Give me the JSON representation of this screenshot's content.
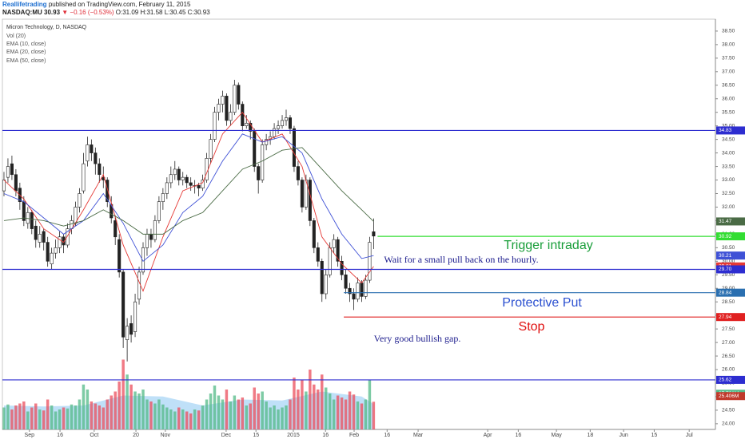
{
  "header": {
    "publisher": "Reallifetrading",
    "published": "published on TradingView.com, February 11, 2015",
    "symbol": "NASDAQ:MU 30.93",
    "change": "▼ −0.16 (−0.53%)",
    "ohlc": "O:31.09 H:31.58 L:30.45 C:30.93"
  },
  "chart_data": {
    "type": "candlestick",
    "title": "Micron Technology, D, NASDAQ",
    "up_color": "#53b987",
    "down_color": "#eb4d5c",
    "xlim": [
      -1,
      179
    ],
    "xticks": [
      {
        "value": 6.4,
        "label": "Sep"
      },
      {
        "value": 14.1,
        "label": "16"
      },
      {
        "value": 22.7,
        "label": "Oct"
      },
      {
        "value": 33.2,
        "label": "20"
      },
      {
        "value": 40.6,
        "label": "Nov"
      },
      {
        "value": 55.9,
        "label": "Dec"
      },
      {
        "value": 63.4,
        "label": "15"
      },
      {
        "value": 72.8,
        "label": "2015"
      },
      {
        "value": 80.9,
        "label": "16"
      },
      {
        "value": 88.1,
        "label": "Feb"
      },
      {
        "value": 96.4,
        "label": "16"
      },
      {
        "value": 104.2,
        "label": "Mar"
      },
      {
        "value": 121.7,
        "label": "Apr"
      },
      {
        "value": 129.4,
        "label": "16"
      },
      {
        "value": 139.0,
        "label": "May"
      },
      {
        "value": 147.5,
        "label": "18"
      },
      {
        "value": 155.9,
        "label": "Jun"
      },
      {
        "value": 163.6,
        "label": "15"
      },
      {
        "value": 172.4,
        "label": "Jul"
      }
    ],
    "ylim": [
      23.79,
      38.94
    ],
    "yticks": [
      {
        "value": 24,
        "label": "24.00"
      },
      {
        "value": 24.5,
        "label": "24.50"
      },
      {
        "value": 25,
        "label": "25.00"
      },
      {
        "value": 25.5,
        "label": "25.50"
      },
      {
        "value": 26,
        "label": "26.00"
      },
      {
        "value": 26.5,
        "label": "26.50"
      },
      {
        "value": 27,
        "label": "27.00"
      },
      {
        "value": 27.5,
        "label": "27.50"
      },
      {
        "value": 28,
        "label": "28.00"
      },
      {
        "value": 28.5,
        "label": "28.50"
      },
      {
        "value": 29,
        "label": "29.00"
      },
      {
        "value": 29.5,
        "label": "29.50"
      },
      {
        "value": 30,
        "label": "30.00"
      },
      {
        "value": 30.5,
        "label": "30.50"
      },
      {
        "value": 31,
        "label": "31.00"
      },
      {
        "value": 31.5,
        "label": "31.50"
      },
      {
        "value": 32,
        "label": "32.00"
      },
      {
        "value": 32.5,
        "label": "32.50"
      },
      {
        "value": 33,
        "label": "33.00"
      },
      {
        "value": 33.5,
        "label": "33.50"
      },
      {
        "value": 34,
        "label": "34.00"
      },
      {
        "value": 34.5,
        "label": "34.50"
      },
      {
        "value": 35,
        "label": "35.00"
      },
      {
        "value": 35.5,
        "label": "35.50"
      },
      {
        "value": 36,
        "label": "36.00"
      },
      {
        "value": 36.5,
        "label": "36.50"
      },
      {
        "value": 37,
        "label": "37.00"
      },
      {
        "value": 37.5,
        "label": "37.50"
      },
      {
        "value": 38,
        "label": "38.00"
      },
      {
        "value": 38.5,
        "label": "38.50"
      }
    ],
    "candles": [
      [
        32.6,
        33.3,
        32.4,
        33.0
      ],
      [
        33.1,
        33.8,
        32.9,
        33.5
      ],
      [
        33.6,
        33.9,
        33.0,
        33.2
      ],
      [
        33.2,
        33.4,
        32.4,
        32.6
      ],
      [
        32.7,
        32.9,
        31.9,
        32.2
      ],
      [
        32.2,
        32.4,
        31.3,
        31.5
      ],
      [
        31.4,
        32.0,
        31.2,
        31.8
      ],
      [
        31.8,
        31.9,
        31.0,
        31.2
      ],
      [
        31.3,
        31.5,
        30.5,
        30.8
      ],
      [
        30.7,
        31.3,
        30.5,
        31.0
      ],
      [
        31.1,
        31.2,
        30.4,
        30.7
      ],
      [
        30.7,
        30.9,
        29.8,
        30.0
      ],
      [
        29.9,
        30.5,
        29.7,
        30.3
      ],
      [
        30.3,
        30.8,
        30.1,
        30.5
      ],
      [
        30.5,
        31.1,
        30.3,
        30.9
      ],
      [
        30.9,
        31.0,
        30.3,
        30.6
      ],
      [
        30.6,
        31.4,
        30.5,
        31.2
      ],
      [
        31.2,
        31.7,
        31.0,
        31.5
      ],
      [
        31.4,
        32.2,
        31.3,
        32.0
      ],
      [
        32.0,
        32.7,
        31.8,
        32.5
      ],
      [
        32.6,
        34.0,
        32.5,
        33.6
      ],
      [
        33.7,
        34.6,
        33.5,
        34.3
      ],
      [
        34.3,
        34.5,
        33.7,
        34.0
      ],
      [
        34.0,
        34.2,
        33.2,
        33.6
      ],
      [
        33.6,
        33.8,
        32.9,
        33.2
      ],
      [
        33.1,
        33.5,
        32.7,
        33.0
      ],
      [
        33.0,
        33.1,
        32.0,
        32.2
      ],
      [
        32.1,
        32.4,
        31.4,
        31.6
      ],
      [
        31.5,
        31.7,
        30.6,
        30.9
      ],
      [
        30.8,
        31.0,
        29.4,
        29.6
      ],
      [
        29.6,
        29.7,
        26.8,
        27.2
      ],
      [
        27.1,
        27.9,
        26.3,
        27.6
      ],
      [
        27.7,
        28.0,
        27.0,
        27.3
      ],
      [
        27.4,
        28.8,
        27.2,
        28.5
      ],
      [
        28.6,
        29.8,
        28.4,
        29.6
      ],
      [
        29.6,
        30.7,
        29.5,
        30.5
      ],
      [
        30.5,
        31.2,
        30.2,
        31.0
      ],
      [
        31.0,
        31.2,
        30.5,
        30.8
      ],
      [
        30.8,
        31.7,
        30.7,
        31.5
      ],
      [
        31.5,
        32.4,
        31.4,
        32.2
      ],
      [
        32.2,
        32.7,
        31.9,
        32.5
      ],
      [
        32.5,
        33.1,
        32.3,
        32.9
      ],
      [
        32.9,
        33.5,
        32.7,
        33.2
      ],
      [
        33.2,
        33.7,
        33.0,
        33.4
      ],
      [
        33.4,
        33.5,
        32.8,
        33.0
      ],
      [
        33.0,
        33.3,
        32.8,
        33.1
      ],
      [
        33.1,
        33.2,
        32.7,
        32.9
      ],
      [
        32.9,
        33.1,
        32.6,
        32.8
      ],
      [
        32.8,
        33.0,
        32.5,
        32.8
      ],
      [
        32.8,
        32.9,
        32.4,
        32.7
      ],
      [
        32.7,
        33.2,
        32.6,
        33.0
      ],
      [
        33.0,
        34.0,
        32.9,
        33.8
      ],
      [
        33.8,
        34.7,
        33.6,
        34.5
      ],
      [
        34.5,
        35.7,
        34.4,
        35.5
      ],
      [
        35.5,
        36.0,
        35.2,
        35.8
      ],
      [
        35.8,
        36.3,
        35.5,
        36.1
      ],
      [
        36.1,
        36.2,
        35.0,
        35.2
      ],
      [
        35.2,
        35.8,
        35.0,
        35.5
      ],
      [
        35.5,
        36.7,
        35.4,
        36.5
      ],
      [
        36.5,
        36.6,
        35.6,
        35.8
      ],
      [
        35.8,
        35.9,
        34.8,
        35.0
      ],
      [
        35.0,
        35.4,
        34.9,
        35.1
      ],
      [
        35.1,
        35.2,
        34.5,
        34.8
      ],
      [
        34.8,
        34.9,
        33.3,
        33.5
      ],
      [
        33.5,
        33.6,
        32.5,
        33.0
      ],
      [
        33.0,
        34.5,
        32.9,
        34.3
      ],
      [
        34.3,
        34.7,
        34.1,
        34.5
      ],
      [
        34.5,
        34.8,
        34.3,
        34.6
      ],
      [
        34.6,
        35.1,
        34.5,
        34.9
      ],
      [
        34.9,
        35.2,
        34.7,
        35.0
      ],
      [
        35.0,
        35.4,
        34.9,
        35.2
      ],
      [
        35.2,
        35.6,
        35.0,
        35.3
      ],
      [
        35.3,
        35.4,
        34.7,
        34.9
      ],
      [
        34.9,
        35.0,
        33.3,
        33.5
      ],
      [
        33.5,
        33.7,
        32.8,
        33.0
      ],
      [
        33.0,
        33.1,
        31.8,
        32.0
      ],
      [
        32.0,
        33.2,
        31.9,
        33.0
      ],
      [
        33.0,
        33.1,
        31.3,
        31.5
      ],
      [
        31.5,
        31.6,
        30.3,
        30.5
      ],
      [
        30.5,
        30.7,
        29.8,
        30.0
      ],
      [
        30.0,
        30.1,
        28.5,
        28.8
      ],
      [
        28.8,
        29.7,
        28.6,
        29.5
      ],
      [
        29.5,
        30.7,
        29.4,
        30.5
      ],
      [
        30.5,
        31.0,
        30.3,
        30.8
      ],
      [
        30.8,
        30.9,
        29.8,
        30.0
      ],
      [
        30.0,
        30.2,
        29.3,
        29.5
      ],
      [
        29.5,
        29.7,
        28.8,
        29.0
      ],
      [
        29.0,
        29.2,
        28.5,
        28.8
      ],
      [
        28.8,
        29.0,
        28.2,
        28.6
      ],
      [
        28.6,
        29.4,
        28.5,
        29.2
      ],
      [
        29.2,
        29.3,
        28.5,
        28.7
      ],
      [
        28.7,
        29.5,
        28.6,
        29.3
      ],
      [
        29.3,
        30.9,
        29.2,
        30.7
      ],
      [
        31.09,
        31.58,
        30.45,
        30.93
      ]
    ],
    "volume": {
      "name": "Vol (20)",
      "ylim": [
        0,
        80
      ],
      "values": [
        22,
        25,
        20,
        24,
        26,
        28,
        18,
        22,
        26,
        20,
        19,
        30,
        24,
        18,
        20,
        22,
        21,
        25,
        24,
        30,
        45,
        40,
        28,
        26,
        24,
        22,
        30,
        34,
        38,
        48,
        70,
        55,
        45,
        38,
        36,
        40,
        30,
        28,
        26,
        30,
        25,
        22,
        20,
        18,
        22,
        20,
        18,
        16,
        20,
        19,
        24,
        30,
        36,
        44,
        34,
        30,
        40,
        28,
        34,
        30,
        32,
        24,
        26,
        42,
        36,
        38,
        28,
        22,
        24,
        20,
        22,
        24,
        30,
        52,
        40,
        50,
        38,
        60,
        45,
        40,
        55,
        42,
        36,
        30,
        34,
        32,
        30,
        38,
        35,
        28,
        26,
        30,
        50,
        27.731
      ],
      "ma_color": "#a9d6f5",
      "ma_x": [
        0,
        10,
        20,
        30,
        40,
        50,
        60,
        70,
        80,
        90,
        93
      ],
      "ma_values": [
        24,
        23,
        24,
        34,
        33,
        24,
        30,
        29,
        38,
        33,
        25.406
      ]
    },
    "volume_tags": [
      {
        "value": 27.731,
        "label": "27.731M",
        "color": "#53b987"
      },
      {
        "value": 25.406,
        "label": "25.406M",
        "color": "#c0392b"
      }
    ],
    "series": [
      {
        "name": "EMA (10, close)",
        "color": "#e53935",
        "x": [
          0,
          5,
          10,
          15,
          20,
          25,
          30,
          35,
          40,
          45,
          50,
          55,
          60,
          65,
          70,
          75,
          80,
          85,
          90,
          93
        ],
        "values": [
          33.0,
          32.3,
          31.2,
          30.7,
          31.9,
          33.2,
          30.6,
          28.9,
          30.9,
          32.6,
          32.9,
          34.7,
          35.5,
          34.4,
          34.7,
          33.5,
          30.9,
          29.9,
          29.2,
          29.81
        ]
      },
      {
        "name": "EMA (20, close)",
        "color": "#3f51d6",
        "x": [
          0,
          5,
          10,
          15,
          20,
          25,
          30,
          35,
          40,
          45,
          50,
          55,
          60,
          65,
          70,
          75,
          80,
          85,
          90,
          93
        ],
        "values": [
          32.5,
          32.2,
          31.6,
          31.0,
          31.5,
          32.5,
          31.4,
          30.0,
          30.6,
          31.8,
          32.4,
          33.7,
          34.7,
          34.4,
          34.6,
          34.0,
          32.3,
          31.0,
          30.1,
          30.21
        ]
      },
      {
        "name": "EMA (50, close)",
        "color": "#4a6b45",
        "x": [
          0,
          5,
          10,
          15,
          20,
          25,
          30,
          35,
          40,
          45,
          50,
          55,
          60,
          65,
          70,
          75,
          80,
          85,
          90,
          93
        ],
        "values": [
          31.5,
          31.6,
          31.5,
          31.3,
          31.5,
          31.9,
          31.5,
          31.0,
          31.0,
          31.5,
          31.8,
          32.6,
          33.4,
          33.7,
          34.1,
          34.2,
          33.4,
          32.6,
          31.9,
          31.47
        ]
      }
    ],
    "levels": [
      {
        "value": 34.83,
        "label": "34.83",
        "color": "#2d2dd0"
      },
      {
        "value": 29.7,
        "label": "29.70",
        "color": "#2d2dd0"
      },
      {
        "value": 25.62,
        "label": "25.62",
        "color": "#2d2dd0"
      },
      {
        "value": 30.92,
        "label": "30.92",
        "color": "#33dd33",
        "from": 94
      },
      {
        "value": 28.84,
        "label": "28.84",
        "color": "#2a6fb0",
        "from": 85.5
      },
      {
        "value": 27.94,
        "label": "27.94",
        "color": "#e02020",
        "from": 85.5
      }
    ],
    "annotations": [
      {
        "text": "Trigger intraday",
        "color": "#1a9e3a"
      },
      {
        "text": "Wait for a small pull back on the hourly.",
        "color": "#1a1a8c"
      },
      {
        "text": "Protective Put",
        "color": "#2a4fd0"
      },
      {
        "text": "Stop",
        "color": "#e01010"
      },
      {
        "text": "Very good bullish gap.",
        "color": "#1a1a8c"
      }
    ]
  }
}
